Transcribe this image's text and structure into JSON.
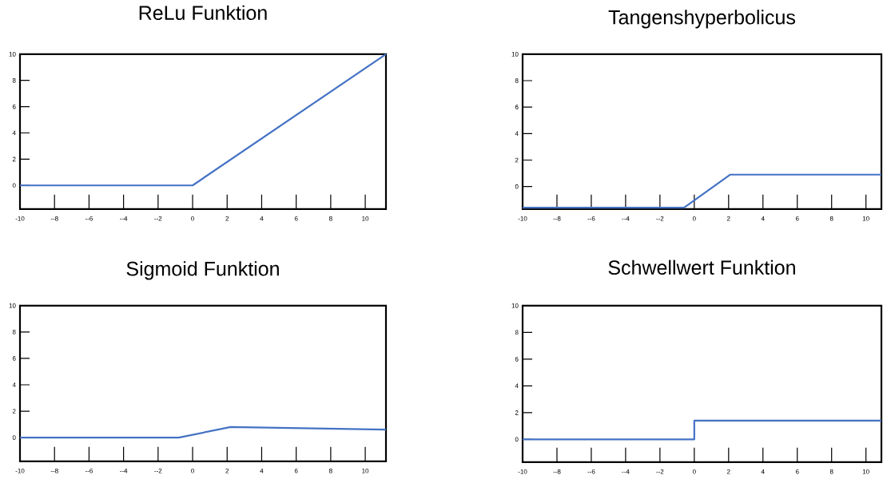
{
  "chart_data": [
    {
      "type": "line",
      "title": "ReLu Funktion",
      "color": "#4472c4",
      "x": [
        -10,
        0,
        11.2
      ],
      "values": [
        0,
        0,
        10
      ],
      "xlim": [
        -10,
        11.2
      ],
      "ylim": [
        -1.8,
        10
      ],
      "xticks": [
        -10,
        {
          "value": -8,
          "label": "--8"
        },
        {
          "value": -6,
          "label": "--6"
        },
        {
          "value": -4,
          "label": "--4"
        },
        {
          "value": -2,
          "label": "--2"
        },
        0,
        2,
        4,
        6,
        8,
        10
      ],
      "yticks": [
        0,
        2,
        4,
        6,
        8,
        10
      ]
    },
    {
      "type": "line",
      "title": "Tangenshyperbolicus",
      "color": "#4472c4",
      "x": [
        -10,
        -0.6,
        2.1,
        10.9
      ],
      "values": [
        -1.6,
        -1.6,
        0.9,
        0.9
      ],
      "xlim": [
        -10,
        10.9
      ],
      "ylim": [
        -1.7,
        10
      ],
      "xticks": [
        -10,
        {
          "value": -8,
          "label": "--8"
        },
        {
          "value": -6,
          "label": "--6"
        },
        {
          "value": -4,
          "label": "--4"
        },
        {
          "value": -2,
          "label": "--2"
        },
        0,
        2,
        4,
        6,
        8,
        10
      ],
      "yticks": [
        0,
        2,
        4,
        6,
        8,
        10
      ]
    },
    {
      "type": "line",
      "title": "Sigmoid Funktion",
      "color": "#4472c4",
      "x": [
        -10,
        -0.8,
        2.2,
        11.2
      ],
      "values": [
        0,
        0,
        0.8,
        0.6
      ],
      "xlim": [
        -10,
        11.2
      ],
      "ylim": [
        -1.8,
        10
      ],
      "xticks": [
        -10,
        {
          "value": -8,
          "label": "--8"
        },
        {
          "value": -6,
          "label": "--6"
        },
        {
          "value": -4,
          "label": "--4"
        },
        {
          "value": -2,
          "label": "--2"
        },
        0,
        2,
        4,
        6,
        8,
        10
      ],
      "yticks": [
        0,
        2,
        4,
        6,
        8,
        10
      ]
    },
    {
      "type": "line",
      "title": "Schwellwert Funktion",
      "color": "#4472c4",
      "x": [
        -10,
        0,
        0,
        10.9
      ],
      "values": [
        0,
        0,
        1.4,
        1.4
      ],
      "xlim": [
        -10,
        10.9
      ],
      "ylim": [
        -1.7,
        10
      ],
      "xticks": [
        -10,
        {
          "value": -8,
          "label": "--8"
        },
        {
          "value": -6,
          "label": "--6"
        },
        {
          "value": -4,
          "label": "--4"
        },
        {
          "value": -2,
          "label": "--2"
        },
        0,
        2,
        4,
        6,
        8,
        10
      ],
      "yticks": [
        0,
        2,
        4,
        6,
        8,
        10
      ]
    }
  ]
}
